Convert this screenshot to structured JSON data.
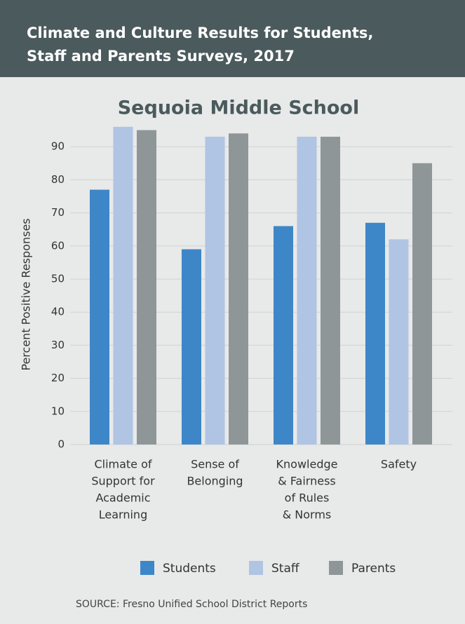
{
  "header": {
    "title_lines": [
      "Climate and Culture Results for Students,",
      "Staff and Parents Surveys, 2017"
    ]
  },
  "chart_data": {
    "type": "bar",
    "title": "Sequoia Middle School",
    "y_label": "Percent Positive Responses",
    "categories": [
      [
        "Climate of",
        "Support for",
        "Academic",
        "Learning"
      ],
      [
        "Sense of",
        "Belonging"
      ],
      [
        "Knowledge",
        "& Fairness",
        "of Rules",
        "& Norms"
      ],
      [
        "Safety"
      ]
    ],
    "series": [
      {
        "name": "Students",
        "color": "#3d87c8",
        "values": [
          77,
          59,
          66,
          67
        ]
      },
      {
        "name": "Staff",
        "color": "#b0c4e4",
        "values": [
          96,
          93,
          93,
          62
        ]
      },
      {
        "name": "Parents",
        "color": "#8e9698",
        "values": [
          95,
          94,
          93,
          85
        ]
      }
    ],
    "ylim": [
      0,
      100
    ],
    "yticks": [
      0,
      10,
      20,
      30,
      40,
      50,
      60,
      70,
      80,
      90
    ],
    "grid": true,
    "legend": "bottom",
    "source": "SOURCE: Fresno Unified School District Reports"
  }
}
